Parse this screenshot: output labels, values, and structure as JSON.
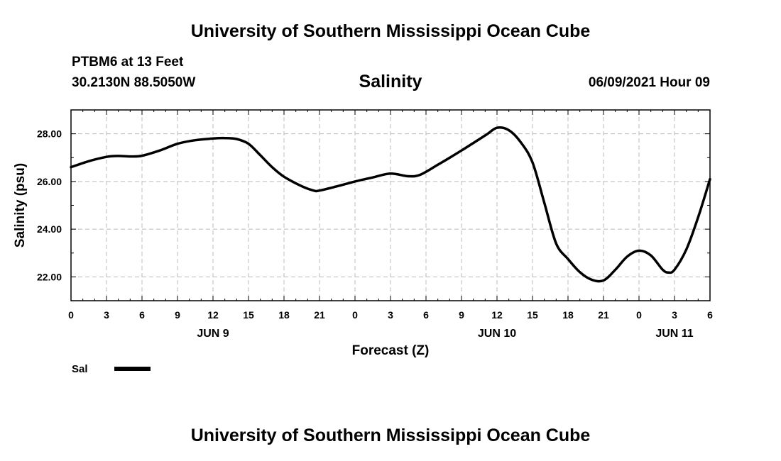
{
  "header": {
    "title": "University of Southern Mississippi Ocean Cube",
    "station": "PTBM6 at 13 Feet",
    "coords": "30.2130N  88.5050W",
    "date": "06/09/2021 Hour 09"
  },
  "footer": {
    "title": "University of Southern Mississippi Ocean Cube"
  },
  "colors": {
    "line": "#000000",
    "grid": "#bbbbbb",
    "background": "#ffffff"
  },
  "chart_data": {
    "type": "line",
    "title": "Salinity",
    "xlabel": "Forecast (Z)",
    "ylabel": "Salinity (psu)",
    "xlim": [
      0,
      54
    ],
    "ylim": [
      21,
      29
    ],
    "x_ticks": [
      0,
      3,
      6,
      9,
      12,
      15,
      18,
      21,
      24,
      27,
      30,
      33,
      36,
      39,
      42,
      45,
      48,
      51,
      54
    ],
    "x_tick_labels": [
      "0",
      "3",
      "6",
      "9",
      "12",
      "15",
      "18",
      "21",
      "0",
      "3",
      "6",
      "9",
      "12",
      "15",
      "18",
      "21",
      "0",
      "3",
      "6"
    ],
    "y_ticks": [
      22,
      24,
      26,
      28
    ],
    "y_tick_labels": [
      "22.00",
      "24.00",
      "26.00",
      "28.00"
    ],
    "day_labels": [
      {
        "label": "JUN 9",
        "x": 12
      },
      {
        "label": "JUN 10",
        "x": 36
      },
      {
        "label": "JUN 11",
        "x": 51
      }
    ],
    "grid": true,
    "legend": {
      "position": "bottom-left",
      "entries": [
        "Sal"
      ]
    },
    "series": [
      {
        "name": "Sal",
        "x": [
          0,
          1.5,
          3,
          4,
          5,
          6,
          7.5,
          9,
          10.5,
          12,
          13,
          14,
          15,
          16,
          17,
          18,
          19.5,
          20.5,
          21,
          22.5,
          24,
          25.5,
          27,
          28.5,
          29.5,
          31,
          33,
          35,
          36,
          37,
          38,
          39,
          40,
          41,
          42,
          43,
          44,
          45,
          46,
          47,
          48,
          49,
          50,
          50.5,
          51,
          52,
          53,
          54
        ],
        "y": [
          26.6,
          26.85,
          27.03,
          27.07,
          27.05,
          27.08,
          27.3,
          27.58,
          27.73,
          27.8,
          27.82,
          27.78,
          27.58,
          27.1,
          26.6,
          26.2,
          25.8,
          25.62,
          25.62,
          25.8,
          26.0,
          26.17,
          26.33,
          26.22,
          26.28,
          26.7,
          27.3,
          27.93,
          28.25,
          28.15,
          27.65,
          26.8,
          25.1,
          23.4,
          22.75,
          22.2,
          21.88,
          21.85,
          22.3,
          22.85,
          23.1,
          22.9,
          22.3,
          22.18,
          22.3,
          23.15,
          24.5,
          26.1
        ]
      }
    ]
  }
}
